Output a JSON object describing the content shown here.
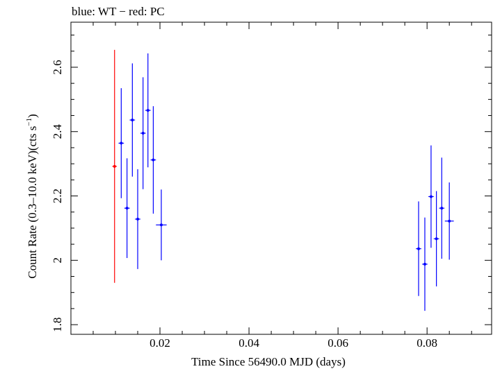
{
  "chart_data": {
    "type": "scatter",
    "title": "blue: WT − red: PC",
    "xlabel": "Time Since 56490.0 MJD (days)",
    "ylabel_main": "Count Rate (0.3–10.0 keV)(cts s",
    "ylabel_sup": "−1",
    "ylabel_close": ")",
    "xlim": [
      0.0,
      0.0945
    ],
    "ylim": [
      1.77,
      2.74
    ],
    "x_major_ticks": [
      0.02,
      0.04,
      0.06,
      0.08
    ],
    "x_tick_labels": [
      "0.02",
      "0.04",
      "0.06",
      "0.08"
    ],
    "x_minor_step": 0.005,
    "y_major_ticks": [
      1.8,
      2.0,
      2.2,
      2.4,
      2.6
    ],
    "y_tick_labels": [
      "1.8",
      "2",
      "2.2",
      "2.4",
      "2.6"
    ],
    "y_minor_step": 0.05,
    "grid": false,
    "series": [
      {
        "name": "PC",
        "color": "#ff0000",
        "points": [
          {
            "x": 0.0098,
            "y": 2.292,
            "xerr": 0.0005,
            "yerr_low": 0.362,
            "yerr_high": 0.362
          }
        ]
      },
      {
        "name": "WT",
        "color": "#0000ff",
        "points": [
          {
            "x": 0.0113,
            "y": 2.364,
            "xerr": 0.0006,
            "yerr_low": 0.171,
            "yerr_high": 0.171
          },
          {
            "x": 0.0126,
            "y": 2.162,
            "xerr": 0.0006,
            "yerr_low": 0.155,
            "yerr_high": 0.155
          },
          {
            "x": 0.0138,
            "y": 2.436,
            "xerr": 0.0006,
            "yerr_low": 0.176,
            "yerr_high": 0.176
          },
          {
            "x": 0.015,
            "y": 2.128,
            "xerr": 0.0006,
            "yerr_low": 0.155,
            "yerr_high": 0.155
          },
          {
            "x": 0.0162,
            "y": 2.395,
            "xerr": 0.0006,
            "yerr_low": 0.174,
            "yerr_high": 0.174
          },
          {
            "x": 0.0173,
            "y": 2.466,
            "xerr": 0.0006,
            "yerr_low": 0.177,
            "yerr_high": 0.177
          },
          {
            "x": 0.0185,
            "y": 2.312,
            "xerr": 0.0006,
            "yerr_low": 0.167,
            "yerr_high": 0.167
          },
          {
            "x": 0.0203,
            "y": 2.11,
            "xerr": 0.0012,
            "yerr_low": 0.11,
            "yerr_high": 0.11
          },
          {
            "x": 0.0781,
            "y": 2.036,
            "xerr": 0.0006,
            "yerr_low": 0.147,
            "yerr_high": 0.147
          },
          {
            "x": 0.0795,
            "y": 1.988,
            "xerr": 0.0006,
            "yerr_low": 0.145,
            "yerr_high": 0.145
          },
          {
            "x": 0.0809,
            "y": 2.198,
            "xerr": 0.0006,
            "yerr_low": 0.159,
            "yerr_high": 0.159
          },
          {
            "x": 0.0821,
            "y": 2.067,
            "xerr": 0.0006,
            "yerr_low": 0.148,
            "yerr_high": 0.148
          },
          {
            "x": 0.0833,
            "y": 2.162,
            "xerr": 0.0006,
            "yerr_low": 0.157,
            "yerr_high": 0.157
          },
          {
            "x": 0.085,
            "y": 2.122,
            "xerr": 0.001,
            "yerr_low": 0.12,
            "yerr_high": 0.12
          }
        ]
      }
    ]
  }
}
